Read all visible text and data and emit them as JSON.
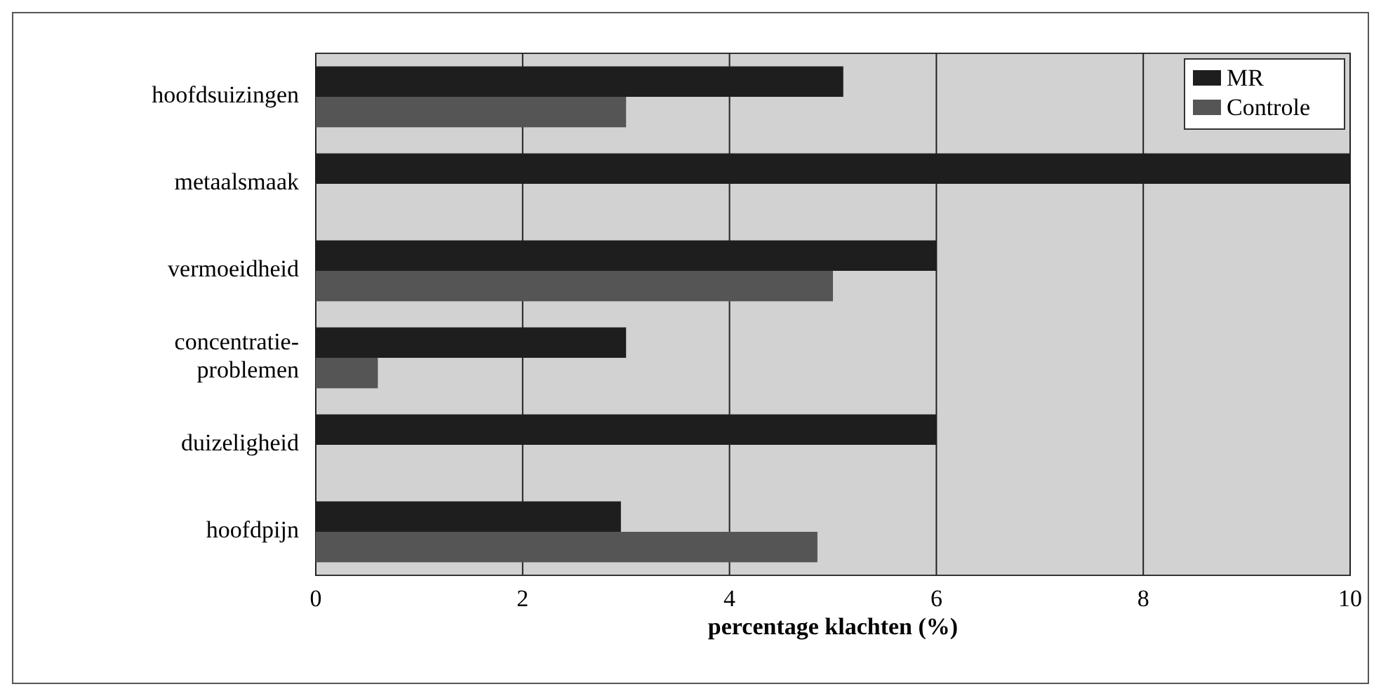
{
  "chart_data": {
    "type": "bar",
    "orientation": "horizontal",
    "xlabel": "percentage klachten (%)",
    "categories": [
      "hoofdsuizingen",
      "metaalsmaak",
      "vermoeidheid",
      "concentratie-problemen",
      "duizeligheid",
      "hoofdpijn"
    ],
    "series": [
      {
        "name": "MR",
        "color": "#1e1e1e",
        "values": [
          5.1,
          10,
          6,
          3,
          6,
          2.95
        ]
      },
      {
        "name": "Controle",
        "color": "#555555",
        "values": [
          3,
          null,
          5,
          0.6,
          null,
          4.85
        ]
      }
    ],
    "xlim": [
      0,
      10
    ],
    "xticks": [
      0,
      2,
      4,
      6,
      8,
      10
    ],
    "grid": "x",
    "legend": "top right"
  }
}
